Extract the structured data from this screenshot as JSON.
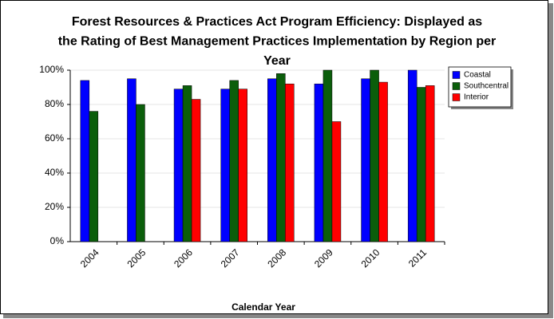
{
  "chart_data": {
    "type": "bar",
    "title": [
      "Forest Resources & Practices Act Program Efficiency:  Displayed as",
      "the Rating of Best Management Practices Implementation by Region per",
      "Year"
    ],
    "x_label": "Calendar Year",
    "categories": [
      "2004",
      "2005",
      "2006",
      "2007",
      "2008",
      "2009",
      "2010",
      "2011"
    ],
    "series": [
      {
        "name": "Coastal",
        "color": "#0000ff",
        "values": [
          94,
          95,
          89,
          89,
          95,
          92,
          95,
          100
        ]
      },
      {
        "name": "Southcentral",
        "color": "#0b5e0b",
        "values": [
          76,
          80,
          91,
          94,
          98,
          100,
          100,
          90
        ]
      },
      {
        "name": "Interior",
        "color": "#ff0000",
        "values": [
          null,
          null,
          83,
          89,
          92,
          70,
          93,
          91
        ]
      }
    ],
    "ylim": [
      0,
      100
    ],
    "yticks": [
      {
        "value": 0,
        "label": "0%"
      },
      {
        "value": 20,
        "label": "20%"
      },
      {
        "value": 40,
        "label": "40%"
      },
      {
        "value": 60,
        "label": "60%"
      },
      {
        "value": 80,
        "label": "80%"
      },
      {
        "value": 100,
        "label": "100%"
      }
    ],
    "grid": true,
    "legend": "right"
  }
}
